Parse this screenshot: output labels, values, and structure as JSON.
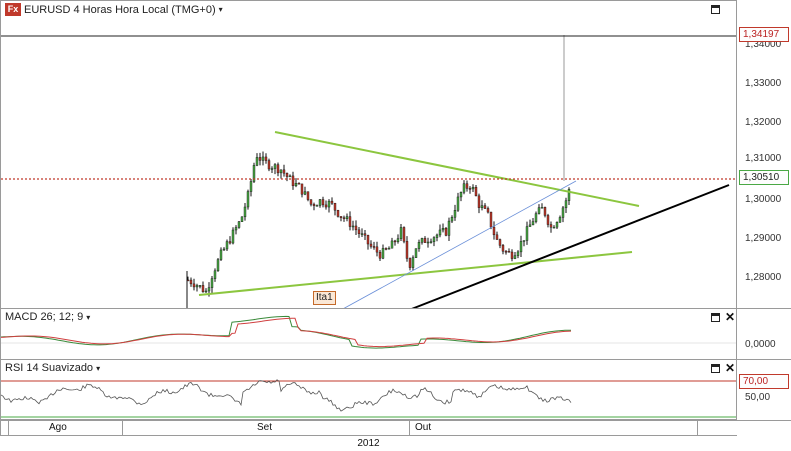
{
  "window": {
    "logo_text": "Fx",
    "title": "EURUSD 4 Horas Hora Local (TMG+0)",
    "title_caret": "▾"
  },
  "main_axis": {
    "ticks": [
      "1,34000",
      "1,33000",
      "1,32000",
      "1,31000",
      "1,30000",
      "1,29000",
      "1,28000"
    ],
    "marker_high": "1,34197",
    "marker_last": "1,30510"
  },
  "drawings": {
    "ita_label": "Ita1"
  },
  "macd": {
    "title": "MACD 26; 12; 9",
    "caret": "▾",
    "tick": "0,0000"
  },
  "rsi": {
    "title": "RSI 14 Suavizado",
    "caret": "▾",
    "tick_70": "70,00",
    "tick_50": "50,00"
  },
  "time_axis": {
    "months": [
      "Ago",
      "Set",
      "Out"
    ],
    "year": "2012"
  },
  "colors": {
    "candle_up": "#4aa845",
    "candle_down": "#c0392b",
    "trendline_green": "#8cc63f",
    "trendline_black": "#000000",
    "trendline_blue": "#6a8fd8",
    "price_line": "#c0392b",
    "macd_line": "#3a8a3a",
    "macd_signal": "#d04040",
    "rsi_line": "#555555",
    "rsi_level": "#c0392b"
  }
}
